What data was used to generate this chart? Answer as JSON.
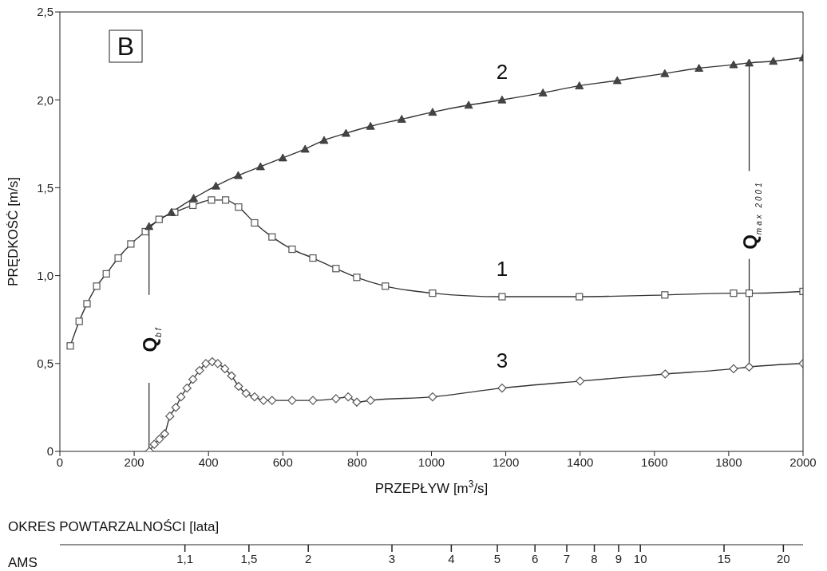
{
  "chart_data": {
    "type": "line",
    "xlabel": "PRZEPŁYW [m$^{3}$/s]",
    "ylabel": "PRĘDKOŚĆ [m/s]",
    "x2label": "OKRES POWTARZALNOŚCI [lata]",
    "annotations": [
      "B",
      "AMS"
    ],
    "xlim": [
      0,
      2000
    ],
    "xticks": [
      0,
      200,
      400,
      600,
      800,
      1000,
      1200,
      1400,
      1600,
      1800,
      2000
    ],
    "ylim": [
      0,
      2.5
    ],
    "yticks": [
      0,
      {
        "value": 0.5,
        "label": "0,5"
      },
      {
        "value": 1,
        "label": "1,0"
      },
      {
        "value": 1.5,
        "label": "1,5"
      },
      {
        "value": 2,
        "label": "2,0"
      },
      {
        "value": 2.5,
        "label": "2,5"
      }
    ],
    "x2lim": [
      0.6,
      22
    ],
    "x2ticks": [
      {
        "value": 1.1,
        "label": "1,1"
      },
      {
        "value": 1.5,
        "label": "1,5"
      },
      2,
      3,
      4,
      5,
      6,
      7,
      8,
      9,
      10,
      15,
      20
    ],
    "log": "x2",
    "line_style": "solid",
    "ref_lines": [
      {
        "axis": "x",
        "value": 240,
        "label": "Q$_{bf}$",
        "color": "#222222"
      },
      {
        "axis": "x",
        "value": 1855,
        "label": "Q$_{max 2001}$",
        "color": "#222222"
      }
    ],
    "series": [
      {
        "name": "1",
        "color": "#333333",
        "marker": "square",
        "x": [
          28,
          52,
          73,
          99,
          125,
          157,
          191,
          230,
          267,
          309,
          358,
          408,
          446,
          481,
          524,
          571,
          625,
          681,
          743,
          799,
          876,
          1003,
          1190,
          1398,
          1628,
          1813,
          1855,
          2000
        ],
        "values": [
          0.6,
          0.74,
          0.84,
          0.94,
          1.01,
          1.1,
          1.18,
          1.25,
          1.32,
          1.36,
          1.4,
          1.43,
          1.43,
          1.39,
          1.3,
          1.22,
          1.15,
          1.1,
          1.04,
          0.99,
          0.94,
          0.9,
          0.88,
          0.88,
          0.89,
          0.9,
          0.9,
          0.91
        ]
      },
      {
        "name": "2",
        "color": "#333333",
        "marker": "triangle",
        "x": [
          240,
          300,
          360,
          420,
          480,
          540,
          600,
          660,
          711,
          770,
          836,
          920,
          1003,
          1100,
          1190,
          1300,
          1398,
          1500,
          1628,
          1720,
          1813,
          1855,
          1920,
          2000
        ],
        "values": [
          1.28,
          1.36,
          1.44,
          1.51,
          1.57,
          1.62,
          1.67,
          1.72,
          1.77,
          1.81,
          1.85,
          1.89,
          1.93,
          1.97,
          2.0,
          2.04,
          2.08,
          2.11,
          2.15,
          2.18,
          2.2,
          2.21,
          2.22,
          2.24
        ]
      },
      {
        "name": "3",
        "color": "#333333",
        "marker": "diamond",
        "x": [
          241,
          254,
          268,
          282,
          296,
          312,
          326,
          342,
          358,
          376,
          393,
          410,
          425,
          444,
          462,
          481,
          501,
          524,
          548,
          571,
          625,
          681,
          743,
          776,
          799,
          836,
          1003,
          1190,
          1400,
          1629,
          1813,
          1855,
          2000
        ],
        "values": [
          0,
          0.04,
          0.07,
          0.1,
          0.2,
          0.25,
          0.31,
          0.36,
          0.41,
          0.46,
          0.5,
          0.51,
          0.5,
          0.47,
          0.43,
          0.37,
          0.33,
          0.31,
          0.29,
          0.29,
          0.29,
          0.29,
          0.3,
          0.31,
          0.28,
          0.29,
          0.31,
          0.36,
          0.4,
          0.44,
          0.47,
          0.48,
          0.5
        ]
      }
    ]
  }
}
